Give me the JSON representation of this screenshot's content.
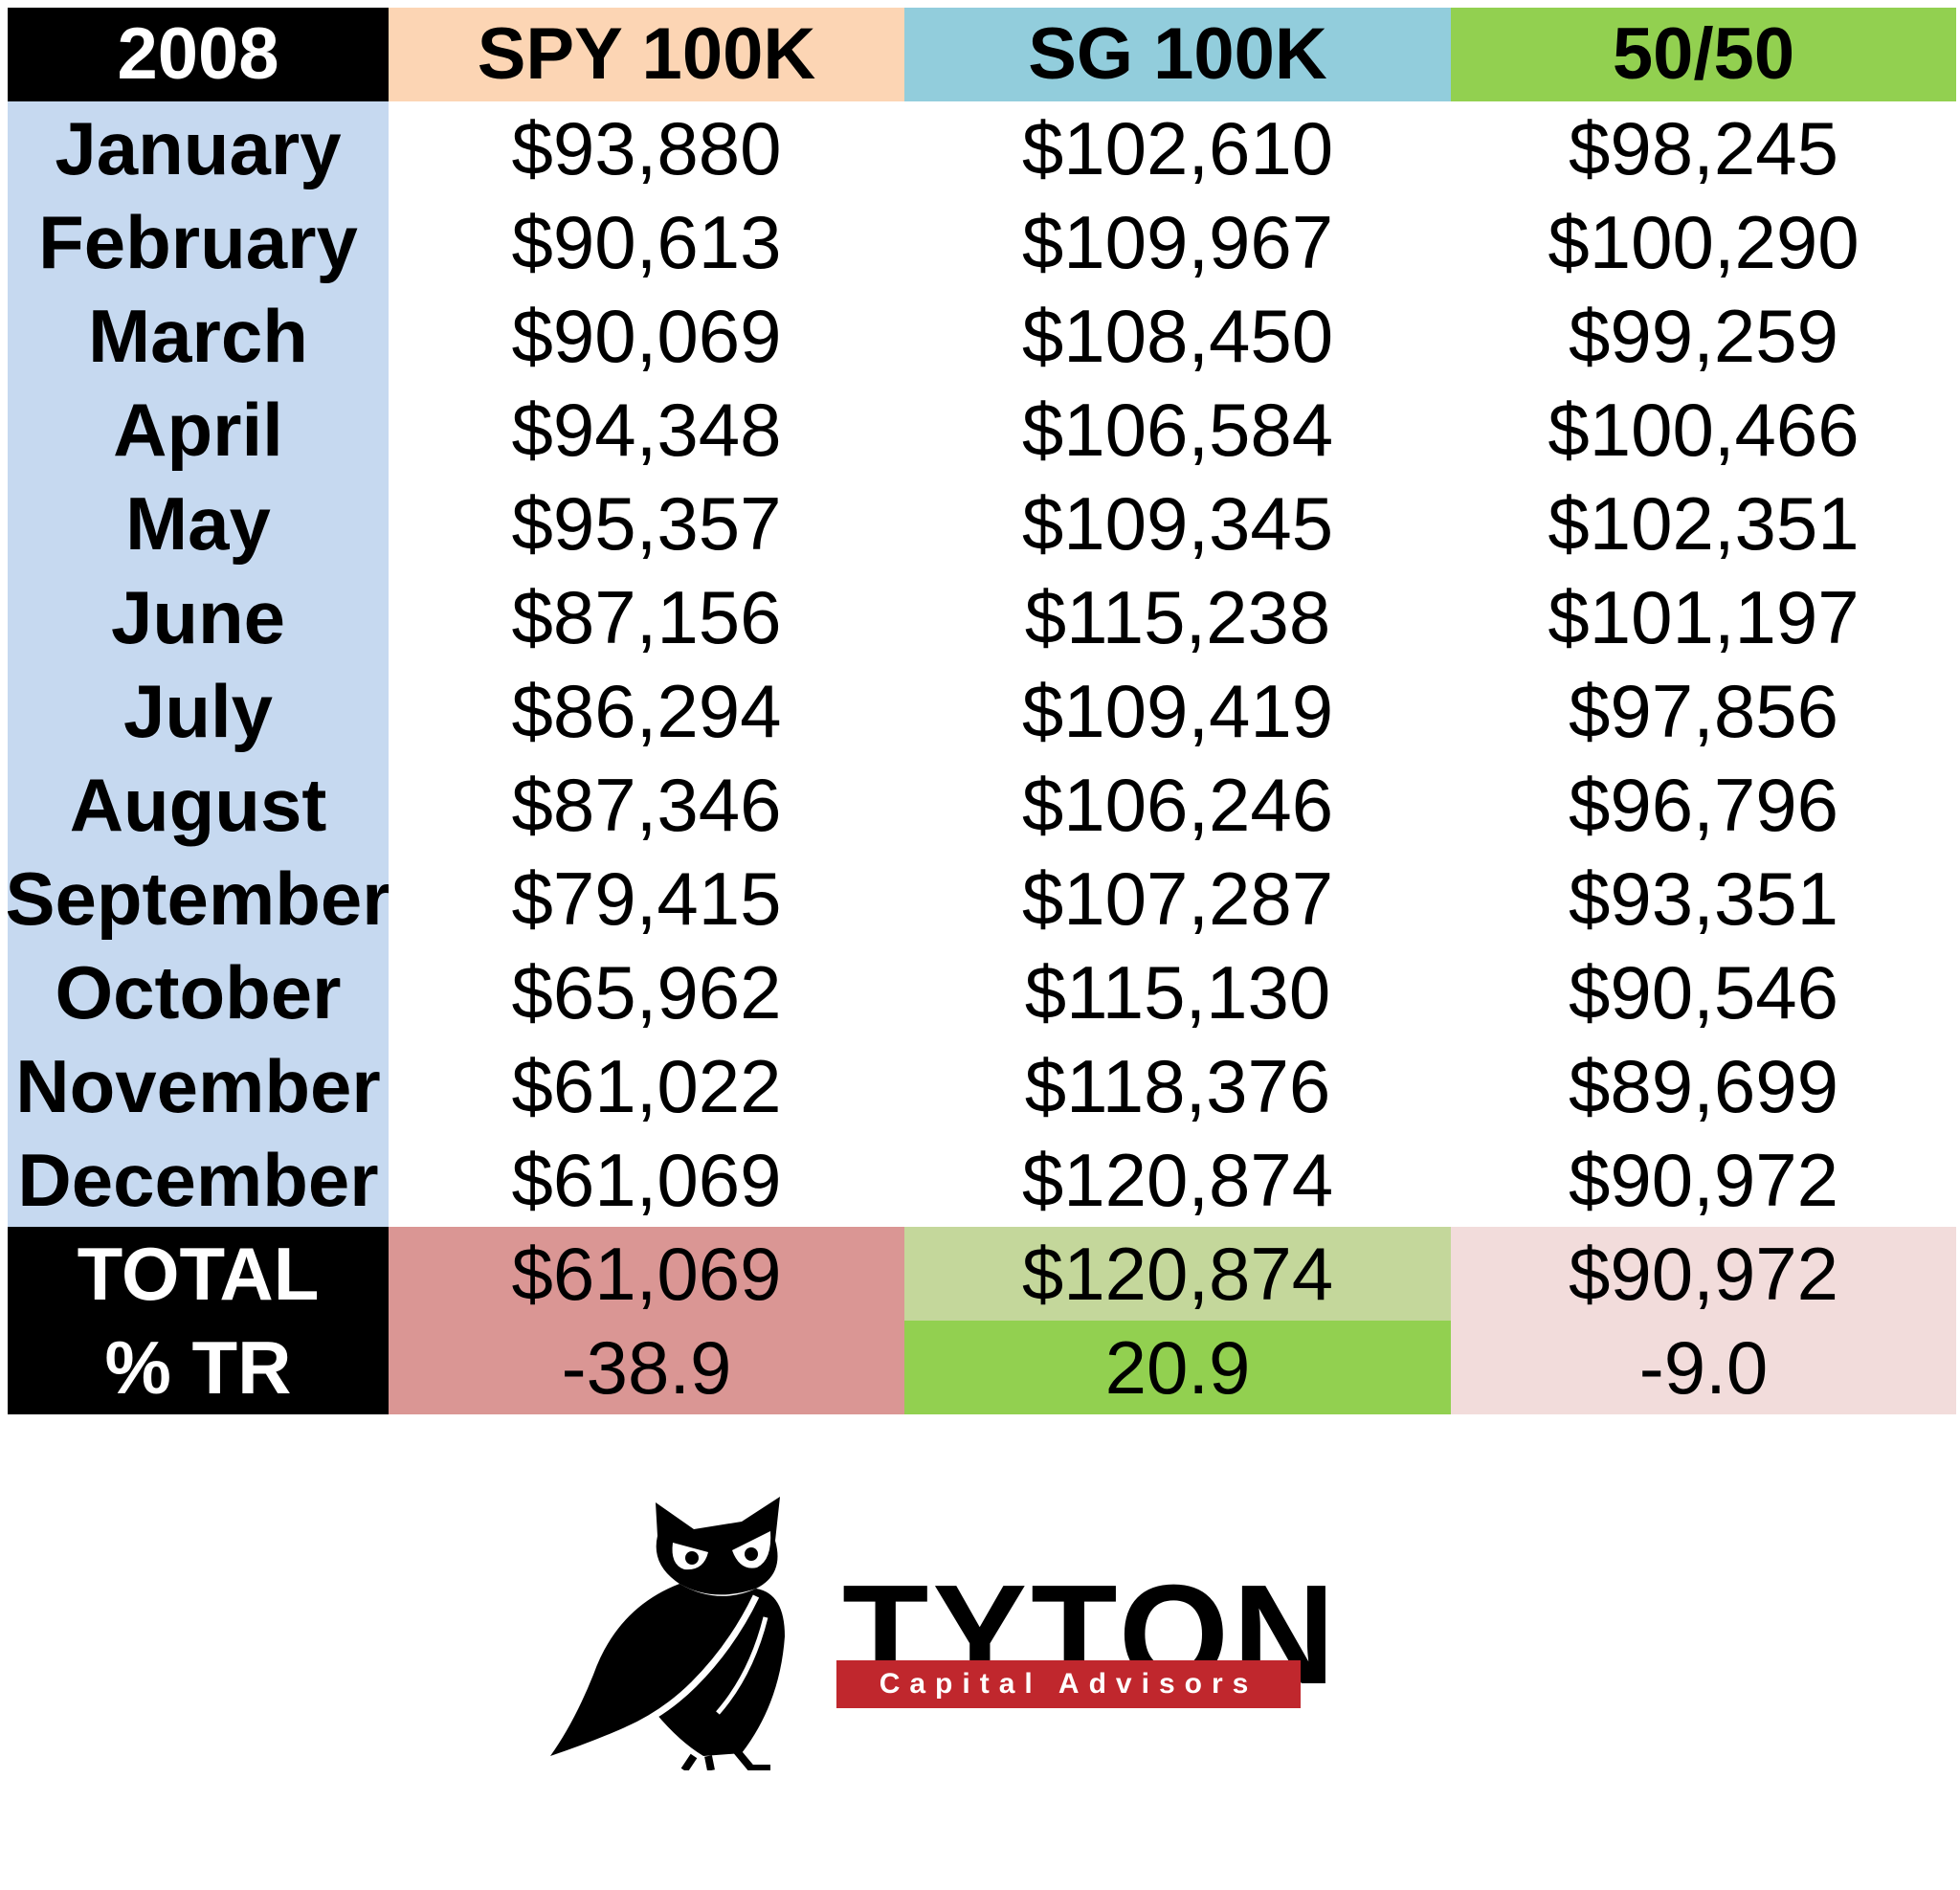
{
  "chart_data": {
    "type": "table",
    "header": [
      "2008",
      "SPY 100K",
      "SG 100K",
      "50/50"
    ],
    "rows": [
      [
        "January",
        "$93,880",
        "$102,610",
        "$98,245"
      ],
      [
        "February",
        "$90,613",
        "$109,967",
        "$100,290"
      ],
      [
        "March",
        "$90,069",
        "$108,450",
        "$99,259"
      ],
      [
        "April",
        "$94,348",
        "$106,584",
        "$100,466"
      ],
      [
        "May",
        "$95,357",
        "$109,345",
        "$102,351"
      ],
      [
        "June",
        "$87,156",
        "$115,238",
        "$101,197"
      ],
      [
        "July",
        "$86,294",
        "$109,419",
        "$97,856"
      ],
      [
        "August",
        "$87,346",
        "$106,246",
        "$96,796"
      ],
      [
        "September",
        "$79,415",
        "$107,287",
        "$93,351"
      ],
      [
        "October",
        "$65,962",
        "$115,130",
        "$90,546"
      ],
      [
        "November",
        "$61,022",
        "$118,376",
        "$89,699"
      ],
      [
        "December",
        "$61,069",
        "$120,874",
        "$90,972"
      ]
    ],
    "footer_rows": [
      [
        "TOTAL",
        "$61,069",
        "$120,874",
        "$90,972"
      ],
      [
        "% TR",
        "-38.9",
        "20.9",
        "-9.0"
      ]
    ]
  },
  "colors": {
    "header": [
      "#000000",
      "#fcd5b4",
      "#92cddc",
      "#92d050"
    ],
    "header_text": [
      "#ffffff",
      "#000000",
      "#000000",
      "#000000"
    ],
    "month_col": "#c6d9f0",
    "total": [
      "#000000",
      "#da9694",
      "#c4d79b",
      "#f2dcdb"
    ],
    "tr": [
      "#000000",
      "#da9694",
      "#92d050",
      "#f2dcdb"
    ],
    "logo_red": "#c0272d"
  },
  "logo": {
    "name": "TYTON",
    "tagline": "Capital Advisors",
    "icon": "owl-icon"
  }
}
